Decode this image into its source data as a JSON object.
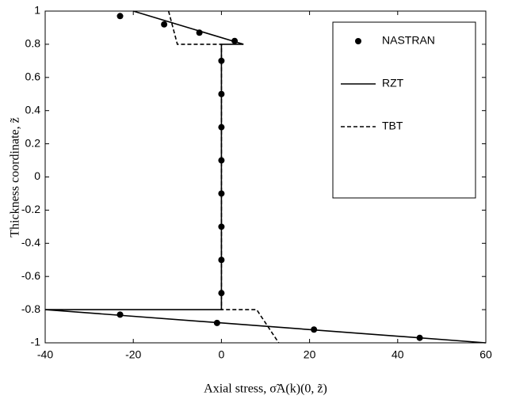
{
  "chart_data": {
    "type": "line",
    "xlabel": "Axial stress, σ̃A(k)(0, z̃)",
    "ylabel": "Thickness coordinate, z̃",
    "xlim": [
      -40,
      60
    ],
    "xticks": [
      -40,
      -20,
      0,
      20,
      40,
      60
    ],
    "ylim": [
      -1,
      1
    ],
    "yticks": [
      -1,
      -0.8,
      -0.6,
      -0.4,
      -0.2,
      0,
      0.2,
      0.4,
      0.6,
      0.8,
      1
    ],
    "legend": "upper right",
    "series": [
      {
        "name": "NASTRAN",
        "style": "markers",
        "color": "#000000",
        "x": [
          -23,
          -13,
          -5,
          3,
          0,
          0,
          0,
          0,
          0,
          0,
          0,
          0,
          -23,
          -1,
          21,
          45
        ],
        "values": [
          0.97,
          0.92,
          0.87,
          0.82,
          0.7,
          0.5,
          0.3,
          0.1,
          -0.1,
          -0.3,
          -0.5,
          -0.7,
          -0.83,
          -0.88,
          -0.92,
          -0.97
        ]
      },
      {
        "name": "RZT",
        "style": "solid",
        "color": "#000000",
        "x": [
          -20,
          5,
          0,
          0,
          -40,
          60
        ],
        "values": [
          1,
          0.8,
          0.8,
          -0.8,
          -0.8,
          -1
        ]
      },
      {
        "name": "TBT",
        "style": "dashed",
        "color": "#000000",
        "x": [
          -12,
          -10,
          0,
          0,
          8,
          13
        ],
        "values": [
          1,
          0.8,
          0.8,
          -0.8,
          -0.8,
          -1
        ]
      }
    ]
  }
}
